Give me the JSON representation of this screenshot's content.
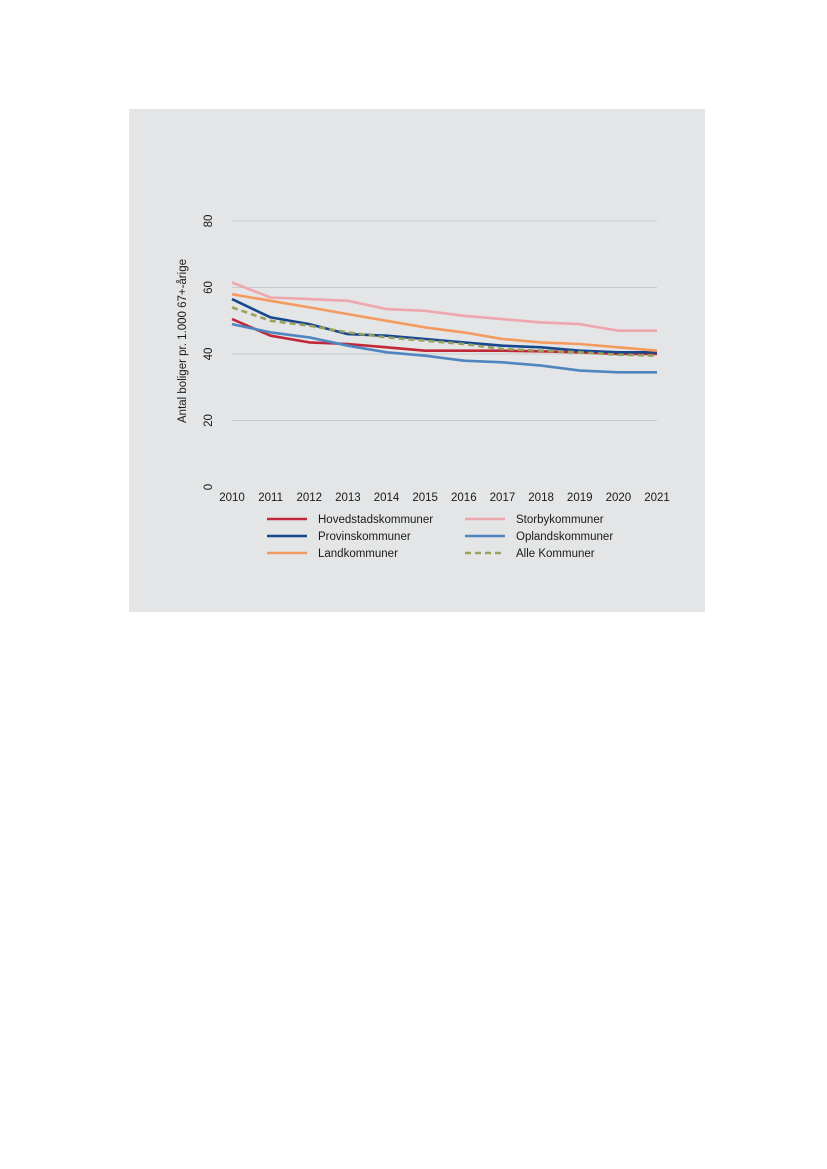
{
  "chart_data": {
    "type": "line",
    "title": "",
    "xlabel": "",
    "ylabel": "Antal boliger pr. 1.000 67+-årige",
    "x": [
      "2010",
      "2011",
      "2012",
      "2013",
      "2014",
      "2015",
      "2016",
      "2017",
      "2018",
      "2019",
      "2020",
      "2021"
    ],
    "ylim": [
      0,
      80
    ],
    "yticks": [
      0,
      20,
      40,
      60,
      80
    ],
    "grid": true,
    "legend_position": "bottom",
    "series": [
      {
        "name": "Hovedstadskommuner",
        "color": "#c0283a",
        "dash": false,
        "values": [
          50.5,
          45.5,
          43.5,
          43.0,
          42.0,
          41.0,
          41.0,
          41.0,
          40.8,
          40.5,
          40.0,
          40.0
        ]
      },
      {
        "name": "Storbykommuner",
        "color": "#eda7ae",
        "dash": false,
        "values": [
          61.5,
          57.0,
          56.5,
          56.0,
          53.5,
          53.0,
          51.5,
          50.5,
          49.5,
          49.0,
          47.0,
          47.0
        ]
      },
      {
        "name": "Provinskommuner",
        "color": "#17478e",
        "dash": false,
        "values": [
          56.5,
          51.0,
          49.0,
          46.0,
          45.5,
          44.5,
          43.5,
          42.5,
          42.0,
          41.0,
          40.5,
          40.5
        ]
      },
      {
        "name": "Oplandskommuner",
        "color": "#4f86bf",
        "dash": false,
        "values": [
          49.0,
          46.5,
          45.0,
          42.5,
          40.5,
          39.5,
          38.0,
          37.5,
          36.5,
          35.0,
          34.5,
          34.5
        ]
      },
      {
        "name": "Landkommuner",
        "color": "#f59a5e",
        "dash": false,
        "values": [
          58.0,
          56.0,
          54.0,
          52.0,
          50.0,
          48.0,
          46.5,
          44.5,
          43.5,
          43.0,
          42.0,
          41.0
        ]
      },
      {
        "name": "Alle Kommuner",
        "color": "#9aa15d",
        "dash": true,
        "values": [
          54.0,
          50.0,
          48.5,
          46.5,
          45.0,
          44.0,
          43.0,
          41.5,
          41.0,
          40.5,
          39.8,
          39.5
        ]
      }
    ]
  }
}
